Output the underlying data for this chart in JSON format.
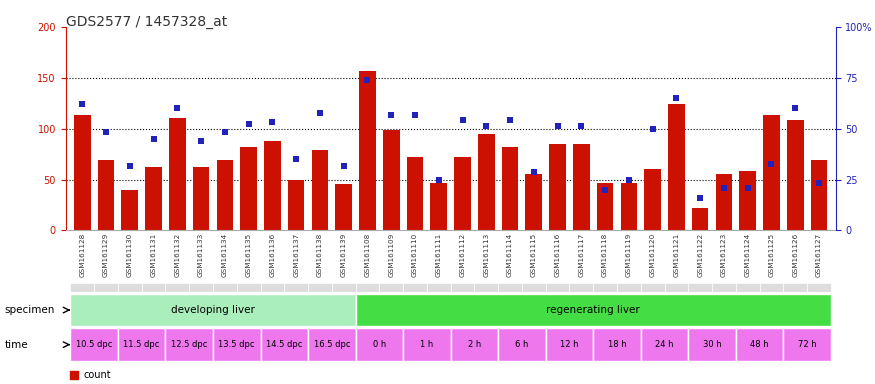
{
  "title": "GDS2577 / 1457328_at",
  "samples": [
    "GSM161128",
    "GSM161129",
    "GSM161130",
    "GSM161131",
    "GSM161132",
    "GSM161133",
    "GSM161134",
    "GSM161135",
    "GSM161136",
    "GSM161137",
    "GSM161138",
    "GSM161139",
    "GSM161108",
    "GSM161109",
    "GSM161110",
    "GSM161111",
    "GSM161112",
    "GSM161113",
    "GSM161114",
    "GSM161115",
    "GSM161116",
    "GSM161117",
    "GSM161118",
    "GSM161119",
    "GSM161120",
    "GSM161121",
    "GSM161122",
    "GSM161123",
    "GSM161124",
    "GSM161125",
    "GSM161126",
    "GSM161127"
  ],
  "counts": [
    113,
    69,
    40,
    62,
    110,
    62,
    69,
    82,
    88,
    50,
    79,
    46,
    157,
    99,
    72,
    47,
    72,
    95,
    82,
    55,
    85,
    85,
    47,
    47,
    60,
    124,
    22,
    55,
    58,
    113,
    108,
    69
  ],
  "percentiles_left_scale": [
    124,
    97,
    63,
    90,
    120,
    88,
    97,
    105,
    107,
    70,
    115,
    63,
    148,
    113,
    113,
    50,
    108,
    103,
    108,
    57,
    103,
    103,
    40,
    50,
    100,
    130,
    32,
    42,
    42,
    65,
    120,
    47
  ],
  "bar_color": "#cc1100",
  "square_color": "#2222bb",
  "left_ylim": [
    0,
    200
  ],
  "right_ylim": [
    0,
    100
  ],
  "left_yticks": [
    0,
    50,
    100,
    150,
    200
  ],
  "right_yticks": [
    0,
    25,
    50,
    75,
    100
  ],
  "right_yticklabels": [
    "0",
    "25",
    "50",
    "75",
    "100%"
  ],
  "specimen_groups": [
    {
      "label": "developing liver",
      "start": 0,
      "end": 11,
      "color": "#aaeebb"
    },
    {
      "label": "regenerating liver",
      "start": 12,
      "end": 31,
      "color": "#44dd44"
    }
  ],
  "time_labels": [
    {
      "label": "10.5 dpc",
      "start": 0,
      "end": 1,
      "color": "#ee77ee"
    },
    {
      "label": "11.5 dpc",
      "start": 2,
      "end": 3,
      "color": "#ee77ee"
    },
    {
      "label": "12.5 dpc",
      "start": 4,
      "end": 5,
      "color": "#ee77ee"
    },
    {
      "label": "13.5 dpc",
      "start": 6,
      "end": 7,
      "color": "#ee77ee"
    },
    {
      "label": "14.5 dpc",
      "start": 8,
      "end": 9,
      "color": "#ee77ee"
    },
    {
      "label": "16.5 dpc",
      "start": 10,
      "end": 11,
      "color": "#ee77ee"
    },
    {
      "label": "0 h",
      "start": 12,
      "end": 13,
      "color": "#ee77ee"
    },
    {
      "label": "1 h",
      "start": 14,
      "end": 15,
      "color": "#ee77ee"
    },
    {
      "label": "2 h",
      "start": 16,
      "end": 17,
      "color": "#ee77ee"
    },
    {
      "label": "6 h",
      "start": 18,
      "end": 19,
      "color": "#ee77ee"
    },
    {
      "label": "12 h",
      "start": 20,
      "end": 21,
      "color": "#ee77ee"
    },
    {
      "label": "18 h",
      "start": 22,
      "end": 23,
      "color": "#ee77ee"
    },
    {
      "label": "24 h",
      "start": 24,
      "end": 25,
      "color": "#ee77ee"
    },
    {
      "label": "30 h",
      "start": 26,
      "end": 27,
      "color": "#ee77ee"
    },
    {
      "label": "48 h",
      "start": 28,
      "end": 29,
      "color": "#ee77ee"
    },
    {
      "label": "72 h",
      "start": 30,
      "end": 31,
      "color": "#ee77ee"
    }
  ],
  "bg_color": "#ffffff",
  "left_axis_color": "#cc1100",
  "right_axis_color": "#2222bb",
  "tick_fontsize": 7,
  "sample_fontsize": 5.5,
  "title_fontsize": 10
}
